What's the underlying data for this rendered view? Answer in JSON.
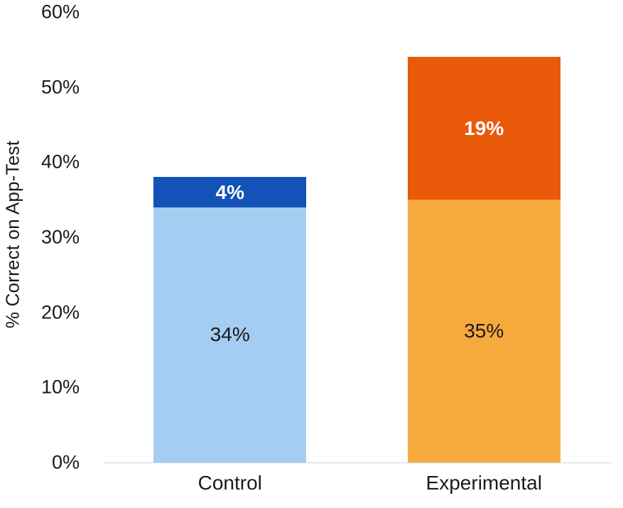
{
  "chart_data": {
    "type": "bar",
    "stacked": true,
    "title": "",
    "xlabel": "",
    "ylabel": "% Correct on App-Test",
    "ylim": [
      0,
      60
    ],
    "yticks": [
      0,
      10,
      20,
      30,
      40,
      50,
      60
    ],
    "ytick_labels": [
      "0%",
      "10%",
      "20%",
      "30%",
      "40%",
      "50%",
      "60%"
    ],
    "categories": [
      "Control",
      "Experimental"
    ],
    "series": [
      {
        "name": "lower",
        "values": [
          34,
          35
        ],
        "labels": [
          "34%",
          "35%"
        ],
        "colors": [
          "#A5CDF1",
          "#F6A93C"
        ],
        "label_color": "#1a1a1a",
        "label_weight": "400"
      },
      {
        "name": "upper",
        "values": [
          4,
          19
        ],
        "labels": [
          "4%",
          "19%"
        ],
        "colors": [
          "#1353B8",
          "#E95A0B"
        ],
        "label_color": "#ffffff",
        "label_weight": "700"
      }
    ],
    "legend": false,
    "grid": false,
    "baseline_color": "#d6d6d6"
  }
}
